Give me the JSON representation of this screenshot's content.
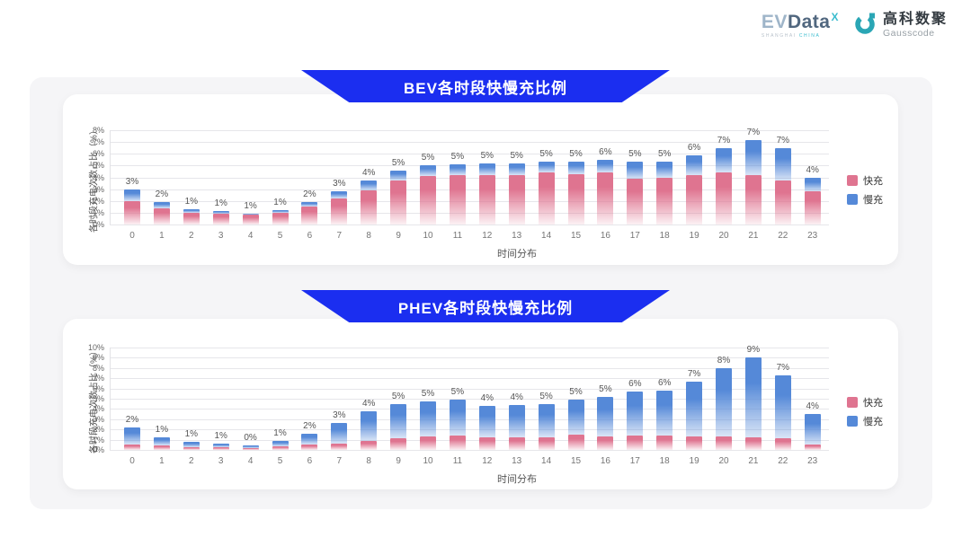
{
  "header": {
    "evdata": {
      "ev": "EV",
      "data": "Data",
      "sup": "X",
      "sub1": "SHANGHAI",
      "sub2": "CHINA"
    },
    "gausscode": {
      "cn": "高科数聚",
      "en": "Gausscode"
    }
  },
  "colors": {
    "banner_blue": "#1B2EF0",
    "panel_bg": "#F5F5F7",
    "fast": "#DF7490",
    "fast_fade": "rgba(223,116,144,0.10)",
    "slow": "#5589D8",
    "slow_fade": "rgba(85,137,216,0.22)",
    "teal_accent": "#2AA6B5"
  },
  "chart_data": [
    {
      "type": "bar",
      "stacked": true,
      "title": "BEV各时段快慢充比例",
      "xlabel": "时间分布",
      "ylabel": "各时段充电次数占比（%）",
      "ylim": [
        0,
        8
      ],
      "ytick_step": 1,
      "grid": true,
      "legend_position": "right",
      "categories": [
        "0",
        "1",
        "2",
        "3",
        "4",
        "5",
        "6",
        "7",
        "8",
        "9",
        "10",
        "11",
        "12",
        "13",
        "14",
        "15",
        "16",
        "17",
        "18",
        "19",
        "20",
        "21",
        "22",
        "23"
      ],
      "series": [
        {
          "name": "快充",
          "color": "#DF7490",
          "values": [
            2.0,
            1.4,
            1.0,
            0.9,
            0.85,
            1.0,
            1.5,
            2.2,
            2.9,
            3.7,
            4.1,
            4.2,
            4.2,
            4.2,
            4.4,
            4.3,
            4.4,
            3.9,
            4.0,
            4.2,
            4.4,
            4.2,
            3.7,
            2.8
          ]
        },
        {
          "name": "慢充",
          "color": "#5589D8",
          "values": [
            1.0,
            0.5,
            0.3,
            0.25,
            0.1,
            0.2,
            0.4,
            0.6,
            0.8,
            0.9,
            0.9,
            0.9,
            1.0,
            1.0,
            0.9,
            1.0,
            1.1,
            1.4,
            1.3,
            1.7,
            2.1,
            3.0,
            2.8,
            1.2
          ]
        }
      ],
      "total_labels": [
        "3%",
        "2%",
        "1%",
        "1%",
        "1%",
        "1%",
        "2%",
        "3%",
        "4%",
        "5%",
        "5%",
        "5%",
        "5%",
        "5%",
        "5%",
        "5%",
        "6%",
        "5%",
        "5%",
        "6%",
        "7%",
        "7%",
        "7%",
        "4%"
      ]
    },
    {
      "type": "bar",
      "stacked": true,
      "title": "PHEV各时段快慢充比例",
      "xlabel": "时间分布",
      "ylabel": "各时段充电次数占比（%）",
      "ylim": [
        0,
        10
      ],
      "ytick_step": 1,
      "grid": true,
      "legend_position": "right",
      "categories": [
        "0",
        "1",
        "2",
        "3",
        "4",
        "5",
        "6",
        "7",
        "8",
        "9",
        "10",
        "11",
        "12",
        "13",
        "14",
        "15",
        "16",
        "17",
        "18",
        "19",
        "20",
        "21",
        "22",
        "23"
      ],
      "series": [
        {
          "name": "快充",
          "color": "#DF7490",
          "values": [
            0.5,
            0.4,
            0.3,
            0.25,
            0.2,
            0.35,
            0.5,
            0.6,
            0.9,
            1.1,
            1.3,
            1.4,
            1.2,
            1.2,
            1.2,
            1.5,
            1.3,
            1.4,
            1.4,
            1.3,
            1.3,
            1.2,
            1.1,
            0.5
          ]
        },
        {
          "name": "慢充",
          "color": "#5589D8",
          "values": [
            1.7,
            0.85,
            0.5,
            0.4,
            0.25,
            0.55,
            1.1,
            2.0,
            2.9,
            3.4,
            3.4,
            3.5,
            3.1,
            3.2,
            3.3,
            3.4,
            3.9,
            4.3,
            4.4,
            5.4,
            6.7,
            7.8,
            6.2,
            3.0
          ]
        }
      ],
      "total_labels": [
        "2%",
        "1%",
        "1%",
        "1%",
        "0%",
        "1%",
        "2%",
        "3%",
        "4%",
        "5%",
        "5%",
        "5%",
        "4%",
        "4%",
        "5%",
        "5%",
        "5%",
        "6%",
        "6%",
        "7%",
        "8%",
        "9%",
        "7%",
        "4%"
      ]
    }
  ]
}
